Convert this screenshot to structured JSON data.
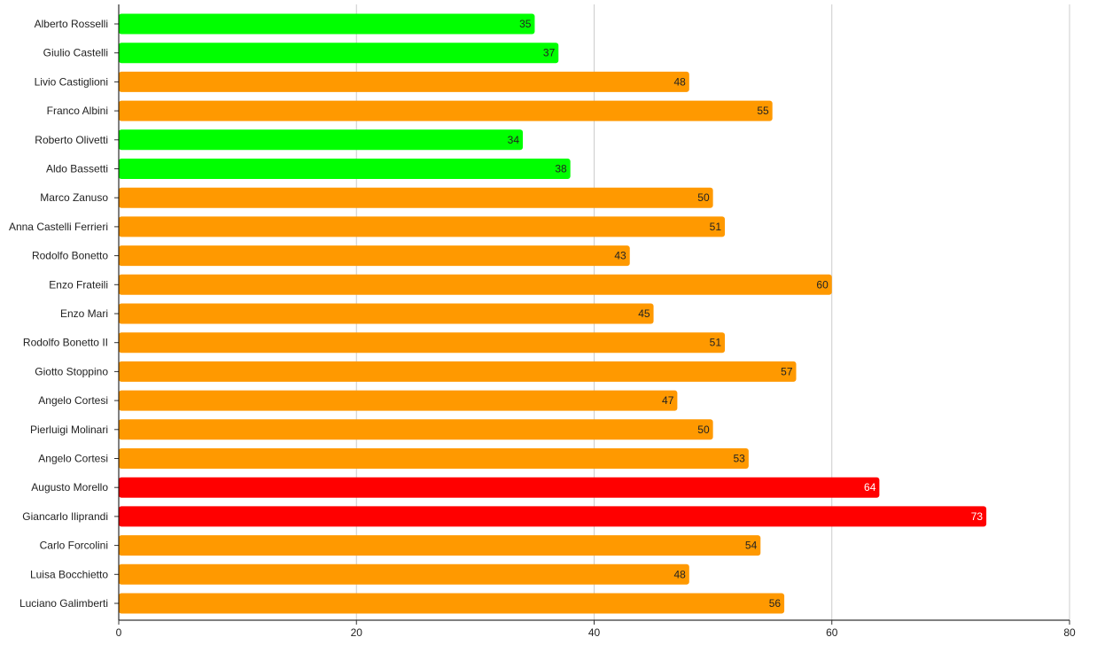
{
  "chart_data": {
    "type": "bar",
    "orientation": "horizontal",
    "categories": [
      "Alberto Rosselli",
      "Giulio Castelli",
      "Livio Castiglioni",
      "Franco Albini",
      "Roberto Olivetti",
      "Aldo Bassetti",
      "Marco Zanuso",
      "Anna Castelli Ferrieri",
      "Rodolfo Bonetto",
      "Enzo Frateili",
      "Enzo Mari",
      "Rodolfo Bonetto II",
      "Giotto Stoppino",
      "Angelo Cortesi",
      "Pierluigi Molinari",
      "Angelo Cortesi",
      "Augusto Morello",
      "Giancarlo Iliprandi",
      "Carlo Forcolini",
      "Luisa Bocchietto",
      "Luciano Galimberti"
    ],
    "values": [
      35,
      37,
      48,
      55,
      34,
      38,
      50,
      51,
      43,
      60,
      45,
      51,
      57,
      47,
      50,
      53,
      64,
      73,
      54,
      48,
      56
    ],
    "bar_colors": [
      "#00ff00",
      "#00ff00",
      "#ff9900",
      "#ff9900",
      "#00ff00",
      "#00ff00",
      "#ff9900",
      "#ff9900",
      "#ff9900",
      "#ff9900",
      "#ff9900",
      "#ff9900",
      "#ff9900",
      "#ff9900",
      "#ff9900",
      "#ff9900",
      "#ff0000",
      "#ff0000",
      "#ff9900",
      "#ff9900",
      "#ff9900"
    ],
    "label_colors": [
      "#222222",
      "#222222",
      "#222222",
      "#222222",
      "#222222",
      "#222222",
      "#222222",
      "#222222",
      "#222222",
      "#222222",
      "#222222",
      "#222222",
      "#222222",
      "#222222",
      "#222222",
      "#222222",
      "#ffffff",
      "#ffffff",
      "#222222",
      "#222222",
      "#222222"
    ],
    "xticks": [
      "0",
      "20",
      "40",
      "60",
      "80"
    ],
    "xlim": [
      0,
      80
    ],
    "grid": true,
    "legend": "none",
    "title": "",
    "xlabel": "",
    "ylabel": ""
  }
}
